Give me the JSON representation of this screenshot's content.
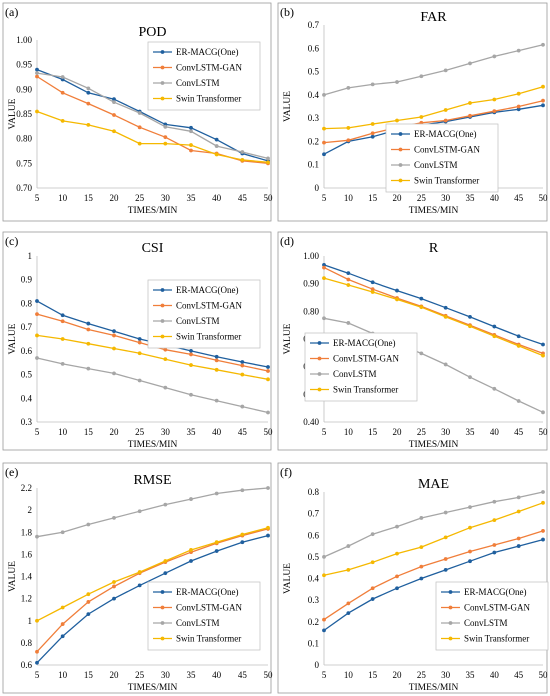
{
  "colors": {
    "ER-MACG(One)": "#1f5f9e",
    "ConvLSTM-GAN": "#f07e3a",
    "ConvLSTM": "#a6a6a6",
    "Swin Transformer": "#f5b800"
  },
  "chart_data": [
    {
      "panel_label": "(a)",
      "type": "line",
      "title": "POD",
      "xlabel": "TIMES/MIN",
      "ylabel": "VALUE",
      "x": [
        5,
        10,
        15,
        20,
        25,
        30,
        35,
        40,
        45,
        50
      ],
      "xlim": [
        5,
        50
      ],
      "ylim": [
        0.7,
        1.0
      ],
      "yticks": [
        "0.70",
        "0.75",
        "0.80",
        "0.85",
        "0.90",
        "0.95",
        "1.00"
      ],
      "grid": false,
      "legend_position": "top-right",
      "series": [
        {
          "name": "ER-MACG(One)",
          "values": [
            0.94,
            0.92,
            0.893,
            0.88,
            0.855,
            0.829,
            0.822,
            0.798,
            0.77,
            0.755
          ]
        },
        {
          "name": "ConvLSTM-GAN",
          "values": [
            0.926,
            0.893,
            0.871,
            0.848,
            0.823,
            0.803,
            0.776,
            0.77,
            0.755,
            0.75
          ]
        },
        {
          "name": "ConvLSTM",
          "values": [
            0.933,
            0.925,
            0.902,
            0.874,
            0.852,
            0.824,
            0.815,
            0.785,
            0.773,
            0.76
          ]
        },
        {
          "name": "Swin Transformer",
          "values": [
            0.855,
            0.836,
            0.828,
            0.815,
            0.79,
            0.79,
            0.787,
            0.768,
            0.757,
            0.752
          ]
        }
      ]
    },
    {
      "panel_label": "(b)",
      "type": "line",
      "title": "FAR",
      "xlabel": "TIMES/MIN",
      "ylabel": "VALUE",
      "x": [
        5,
        10,
        15,
        20,
        25,
        30,
        35,
        40,
        45,
        50
      ],
      "xlim": [
        5,
        50
      ],
      "ylim": [
        0,
        0.7
      ],
      "yticks": [
        "0",
        "0.1",
        "0.2",
        "0.3",
        "0.4",
        "0.5",
        "0.6",
        "0.7"
      ],
      "grid": false,
      "legend_position": "bottom-right",
      "series": [
        {
          "name": "ER-MACG(One)",
          "values": [
            0.145,
            0.2,
            0.22,
            0.25,
            0.27,
            0.285,
            0.305,
            0.325,
            0.338,
            0.355
          ]
        },
        {
          "name": "ConvLSTM-GAN",
          "values": [
            0.195,
            0.205,
            0.235,
            0.26,
            0.28,
            0.29,
            0.31,
            0.33,
            0.35,
            0.375
          ]
        },
        {
          "name": "ConvLSTM",
          "values": [
            0.4,
            0.43,
            0.445,
            0.455,
            0.48,
            0.505,
            0.535,
            0.565,
            0.59,
            0.615
          ]
        },
        {
          "name": "Swin Transformer",
          "values": [
            0.255,
            0.258,
            0.275,
            0.29,
            0.305,
            0.335,
            0.365,
            0.38,
            0.405,
            0.435
          ]
        }
      ]
    },
    {
      "panel_label": "(c)",
      "type": "line",
      "title": "CSI",
      "xlabel": "TIMES/MIN",
      "ylabel": "VALUE",
      "x": [
        5,
        10,
        15,
        20,
        25,
        30,
        35,
        40,
        45,
        50
      ],
      "xlim": [
        5,
        50
      ],
      "ylim": [
        0.3,
        1.0
      ],
      "yticks": [
        "0.3",
        "0.4",
        "0.5",
        "0.6",
        "0.7",
        "0.8",
        "0.9",
        "1"
      ],
      "grid": false,
      "legend_position": "top-right",
      "series": [
        {
          "name": "ER-MACG(One)",
          "values": [
            0.81,
            0.75,
            0.715,
            0.683,
            0.65,
            0.625,
            0.6,
            0.575,
            0.553,
            0.532
          ]
        },
        {
          "name": "ConvLSTM-GAN",
          "values": [
            0.755,
            0.725,
            0.69,
            0.665,
            0.635,
            0.605,
            0.585,
            0.56,
            0.538,
            0.515
          ]
        },
        {
          "name": "ConvLSTM",
          "values": [
            0.57,
            0.545,
            0.525,
            0.505,
            0.475,
            0.445,
            0.415,
            0.39,
            0.365,
            0.34
          ]
        },
        {
          "name": "Swin Transformer",
          "values": [
            0.665,
            0.65,
            0.63,
            0.61,
            0.59,
            0.565,
            0.54,
            0.52,
            0.5,
            0.48
          ]
        }
      ]
    },
    {
      "panel_label": "(d)",
      "type": "line",
      "title": "R",
      "xlabel": "TIMES/MIN",
      "ylabel": "VALUE",
      "x": [
        5,
        10,
        15,
        20,
        25,
        30,
        35,
        40,
        45,
        50
      ],
      "xlim": [
        5,
        50
      ],
      "ylim": [
        0.4,
        1.0
      ],
      "yticks": [
        "0.40",
        "0.50",
        "0.60",
        "0.70",
        "0.80",
        "0.90",
        "1.00"
      ],
      "grid": false,
      "legend_position": "bottom-left",
      "series": [
        {
          "name": "ER-MACG(One)",
          "values": [
            0.968,
            0.938,
            0.905,
            0.875,
            0.846,
            0.813,
            0.78,
            0.745,
            0.71,
            0.68
          ]
        },
        {
          "name": "ConvLSTM-GAN",
          "values": [
            0.958,
            0.915,
            0.88,
            0.848,
            0.818,
            0.784,
            0.75,
            0.715,
            0.68,
            0.648
          ]
        },
        {
          "name": "ConvLSTM",
          "values": [
            0.775,
            0.758,
            0.72,
            0.683,
            0.648,
            0.608,
            0.562,
            0.52,
            0.476,
            0.435
          ]
        },
        {
          "name": "Swin Transformer",
          "values": [
            0.92,
            0.895,
            0.87,
            0.843,
            0.815,
            0.78,
            0.746,
            0.71,
            0.675,
            0.64
          ]
        }
      ]
    },
    {
      "panel_label": "(e)",
      "type": "line",
      "title": "RMSE",
      "xlabel": "TIMES/MIN",
      "ylabel": "VALUE",
      "x": [
        5,
        10,
        15,
        20,
        25,
        30,
        35,
        40,
        45,
        50
      ],
      "xlim": [
        5,
        50
      ],
      "ylim": [
        0.6,
        2.2
      ],
      "yticks": [
        "0.6",
        "0.8",
        "1",
        "1.2",
        "1.4",
        "1.6",
        "1.8",
        "2",
        "2.2"
      ],
      "grid": false,
      "legend_position": "bottom-right",
      "series": [
        {
          "name": "ER-MACG(One)",
          "values": [
            0.62,
            0.86,
            1.06,
            1.2,
            1.32,
            1.43,
            1.54,
            1.63,
            1.71,
            1.77
          ]
        },
        {
          "name": "ConvLSTM-GAN",
          "values": [
            0.72,
            0.97,
            1.17,
            1.31,
            1.43,
            1.53,
            1.62,
            1.7,
            1.77,
            1.83
          ]
        },
        {
          "name": "ConvLSTM",
          "values": [
            1.76,
            1.8,
            1.87,
            1.93,
            1.99,
            2.05,
            2.1,
            2.15,
            2.18,
            2.2
          ]
        },
        {
          "name": "Swin Transformer",
          "values": [
            1.0,
            1.12,
            1.24,
            1.35,
            1.44,
            1.54,
            1.64,
            1.71,
            1.78,
            1.84
          ]
        }
      ]
    },
    {
      "panel_label": "(f)",
      "type": "line",
      "title": "MAE",
      "xlabel": "TIMES/MIN",
      "ylabel": "VALUE",
      "x": [
        5,
        10,
        15,
        20,
        25,
        30,
        35,
        40,
        45,
        50
      ],
      "xlim": [
        5,
        50
      ],
      "ylim": [
        0,
        0.8
      ],
      "yticks": [
        "0",
        "0.1",
        "0.2",
        "0.3",
        "0.4",
        "0.5",
        "0.6",
        "0.7",
        "0.8"
      ],
      "grid": false,
      "legend_position": "bottom-right",
      "series": [
        {
          "name": "ER-MACG(One)",
          "values": [
            0.16,
            0.24,
            0.305,
            0.355,
            0.4,
            0.44,
            0.48,
            0.52,
            0.55,
            0.58
          ]
        },
        {
          "name": "ConvLSTM-GAN",
          "values": [
            0.21,
            0.285,
            0.355,
            0.41,
            0.455,
            0.49,
            0.525,
            0.555,
            0.585,
            0.62
          ]
        },
        {
          "name": "ConvLSTM",
          "values": [
            0.5,
            0.55,
            0.605,
            0.64,
            0.68,
            0.705,
            0.73,
            0.755,
            0.775,
            0.8
          ]
        },
        {
          "name": "Swin Transformer",
          "values": [
            0.415,
            0.44,
            0.475,
            0.515,
            0.545,
            0.59,
            0.635,
            0.67,
            0.71,
            0.75
          ]
        }
      ]
    }
  ]
}
